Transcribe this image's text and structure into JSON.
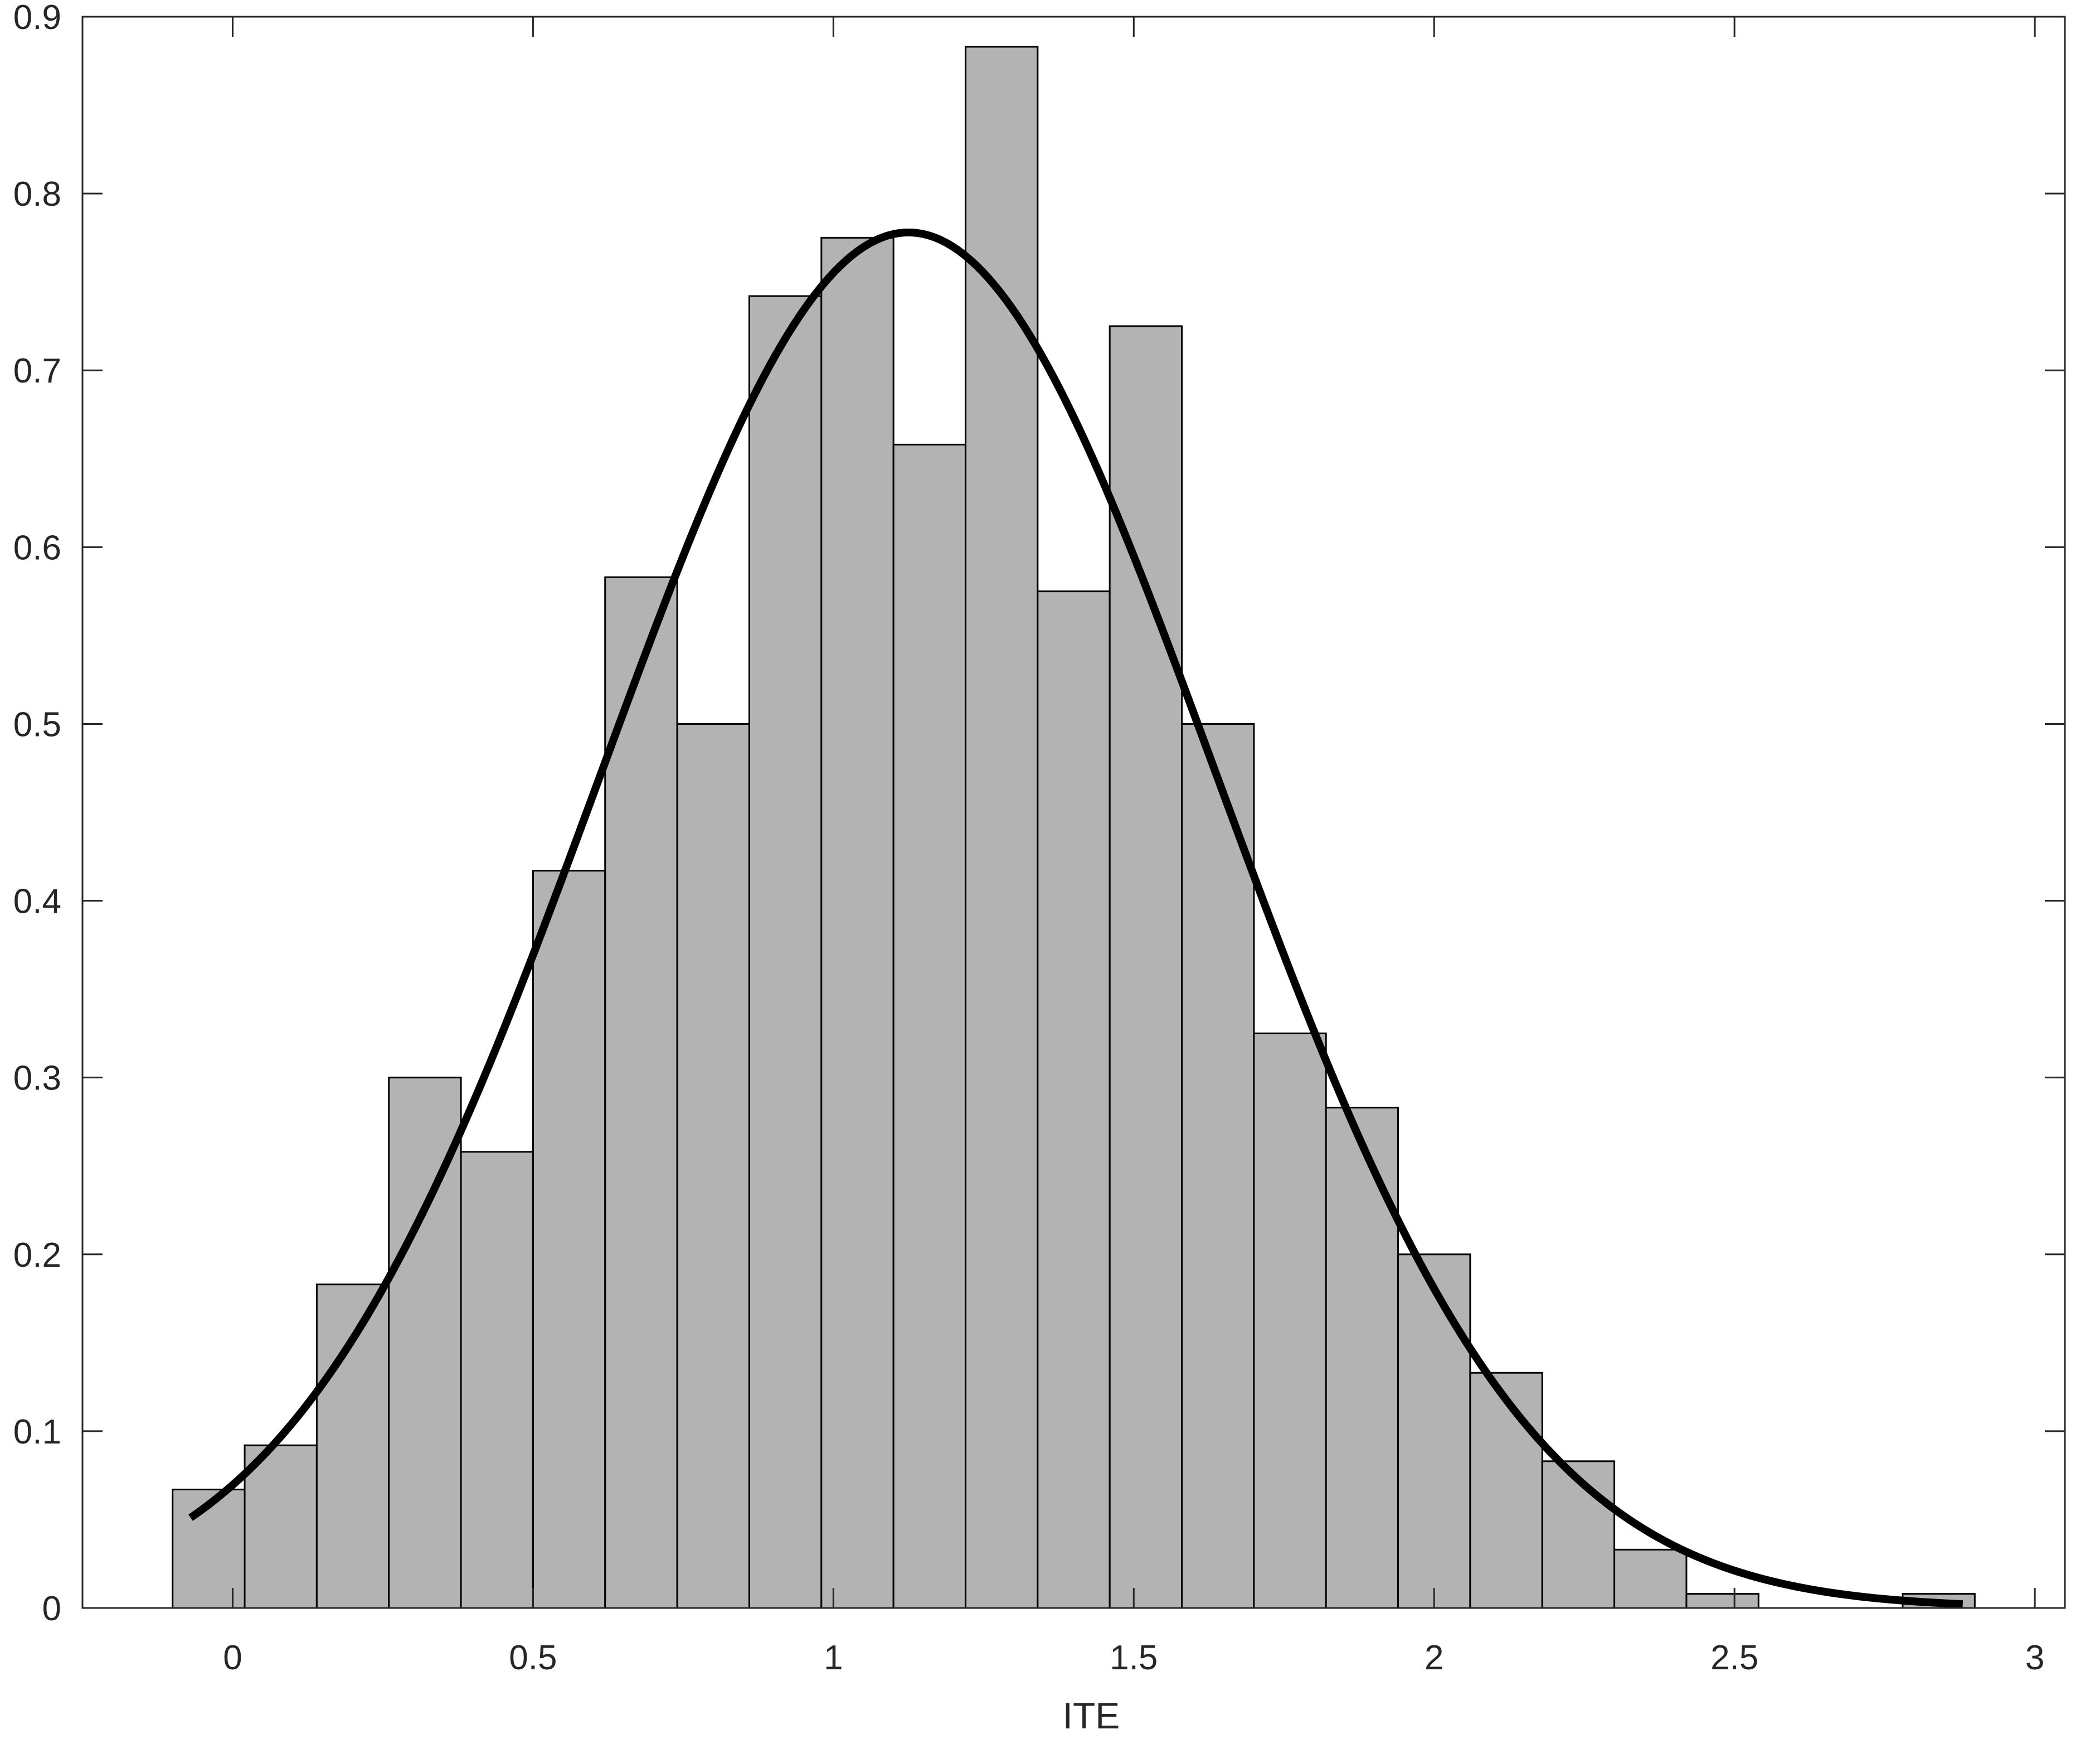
{
  "chart_data": {
    "type": "bar",
    "subtype": "histogram-with-fitted-curve",
    "title": "",
    "xlabel": "ITE",
    "ylabel": "",
    "xlim": [
      -0.25,
      3.05
    ],
    "ylim": [
      0,
      0.9
    ],
    "x_ticks": [
      0,
      0.5,
      1,
      1.5,
      2,
      2.5,
      3
    ],
    "x_tick_labels": [
      "0",
      "0.5",
      "1",
      "1.5",
      "2",
      "2.5",
      "3"
    ],
    "y_ticks": [
      0,
      0.1,
      0.2,
      0.3,
      0.4,
      0.5,
      0.6,
      0.7,
      0.8,
      0.9
    ],
    "y_tick_labels": [
      "0",
      "0.1",
      "0.2",
      "0.3",
      "0.4",
      "0.5",
      "0.6",
      "0.7",
      "0.8",
      "0.9"
    ],
    "bin_width": 0.12,
    "bins": [
      {
        "x0": -0.1,
        "x1": 0.02,
        "value": 0.067
      },
      {
        "x0": 0.02,
        "x1": 0.14,
        "value": 0.092
      },
      {
        "x0": 0.14,
        "x1": 0.26,
        "value": 0.183
      },
      {
        "x0": 0.26,
        "x1": 0.38,
        "value": 0.3
      },
      {
        "x0": 0.38,
        "x1": 0.5,
        "value": 0.258
      },
      {
        "x0": 0.5,
        "x1": 0.62,
        "value": 0.417
      },
      {
        "x0": 0.62,
        "x1": 0.74,
        "value": 0.583
      },
      {
        "x0": 0.74,
        "x1": 0.86,
        "value": 0.5
      },
      {
        "x0": 0.86,
        "x1": 0.98,
        "value": 0.742
      },
      {
        "x0": 0.98,
        "x1": 1.1,
        "value": 0.775
      },
      {
        "x0": 1.1,
        "x1": 1.22,
        "value": 0.658
      },
      {
        "x0": 1.22,
        "x1": 1.34,
        "value": 0.883
      },
      {
        "x0": 1.34,
        "x1": 1.46,
        "value": 0.575
      },
      {
        "x0": 1.46,
        "x1": 1.58,
        "value": 0.725
      },
      {
        "x0": 1.58,
        "x1": 1.7,
        "value": 0.5
      },
      {
        "x0": 1.7,
        "x1": 1.82,
        "value": 0.325
      },
      {
        "x0": 1.82,
        "x1": 1.94,
        "value": 0.283
      },
      {
        "x0": 1.94,
        "x1": 2.06,
        "value": 0.2
      },
      {
        "x0": 2.06,
        "x1": 2.18,
        "value": 0.133
      },
      {
        "x0": 2.18,
        "x1": 2.3,
        "value": 0.083
      },
      {
        "x0": 2.3,
        "x1": 2.42,
        "value": 0.033
      },
      {
        "x0": 2.42,
        "x1": 2.54,
        "value": 0.008
      },
      {
        "x0": 2.78,
        "x1": 2.9,
        "value": 0.008
      }
    ],
    "fit_curve": {
      "type": "normal",
      "mean": 1.125,
      "sd": 0.512,
      "x_range": [
        -0.07,
        2.88
      ],
      "peak": 0.778
    },
    "grid": false,
    "legend": "none",
    "colors": {
      "bar_fill": "#b3b3b3",
      "bar_edge": "#000000",
      "curve": "#000000",
      "axes": "#262626"
    }
  }
}
